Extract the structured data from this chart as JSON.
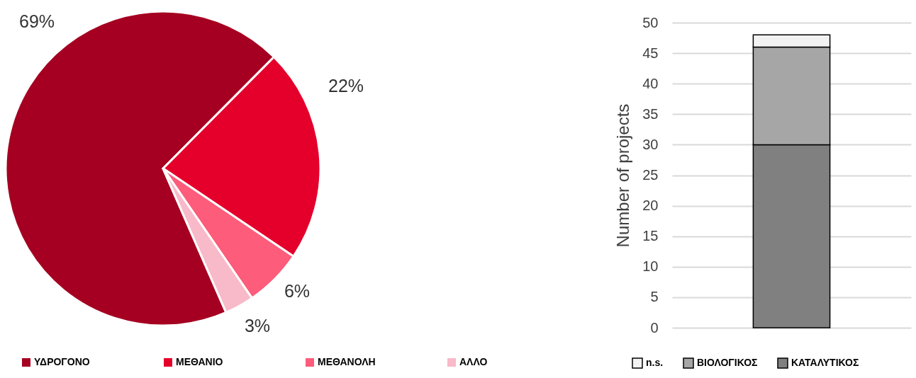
{
  "chart_data": [
    {
      "type": "pie",
      "categories": [
        "ΥΔΡΟΓΟΝΟ",
        "ΜΕΘΑΝΙΟ",
        "ΜΕΘΑΝΟΛΗ",
        "ΑΛΛΟ"
      ],
      "values": [
        69,
        22,
        6,
        3
      ],
      "colors": [
        "#a50021",
        "#e4002b",
        "#fd5c7a",
        "#f8b9c8"
      ],
      "value_labels": [
        "69%",
        "22%",
        "6%",
        "3%"
      ],
      "legend": "bottom"
    },
    {
      "type": "bar",
      "categories": [
        null
      ],
      "series": [
        {
          "name": "ΚΑΤΑΛΥΤΙΚΟΣ",
          "color": "#808080",
          "values": [
            30
          ]
        },
        {
          "name": "ΒΙΟΛΟΓΙΚΟΣ",
          "color": "#a6a6a6",
          "values": [
            16
          ]
        },
        {
          "name": "n.s.",
          "color": "#f2f2f2",
          "values": [
            2
          ]
        }
      ],
      "stacked": true,
      "ylabel": "Number of projects",
      "ylim": [
        0,
        50
      ],
      "yticks": [
        0,
        5,
        10,
        15,
        20,
        25,
        30,
        35,
        40,
        45,
        50
      ],
      "grid": "y",
      "legend": "bottom",
      "tick_labels": "y"
    }
  ]
}
